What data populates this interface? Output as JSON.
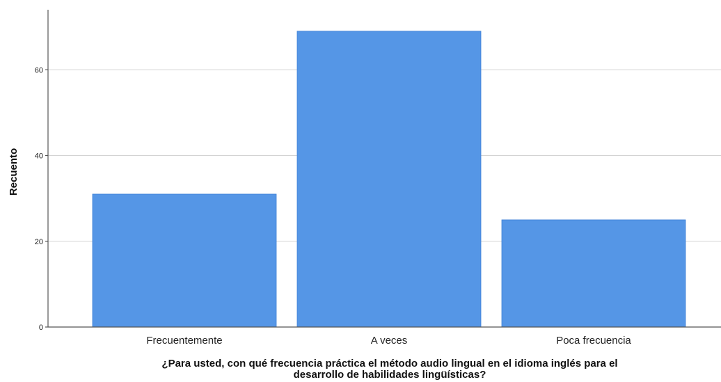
{
  "chart_data": {
    "type": "bar",
    "categories": [
      "Frecuentemente",
      "A veces",
      "Poca frecuencia"
    ],
    "values": [
      31,
      69,
      25
    ],
    "ylabel": "Recuento",
    "xlabel_lines": [
      "¿Para usted, con qué frecuencia práctica el método audio lingual en el idioma inglés para el",
      "desarrollo de habilidades lingüísticas?"
    ],
    "yticks": [
      "0",
      "20",
      "40",
      "60"
    ],
    "ylim": [
      0,
      74
    ],
    "grid": true,
    "bar_color": "#5596e6",
    "grid_color": "#d3d3d3"
  }
}
